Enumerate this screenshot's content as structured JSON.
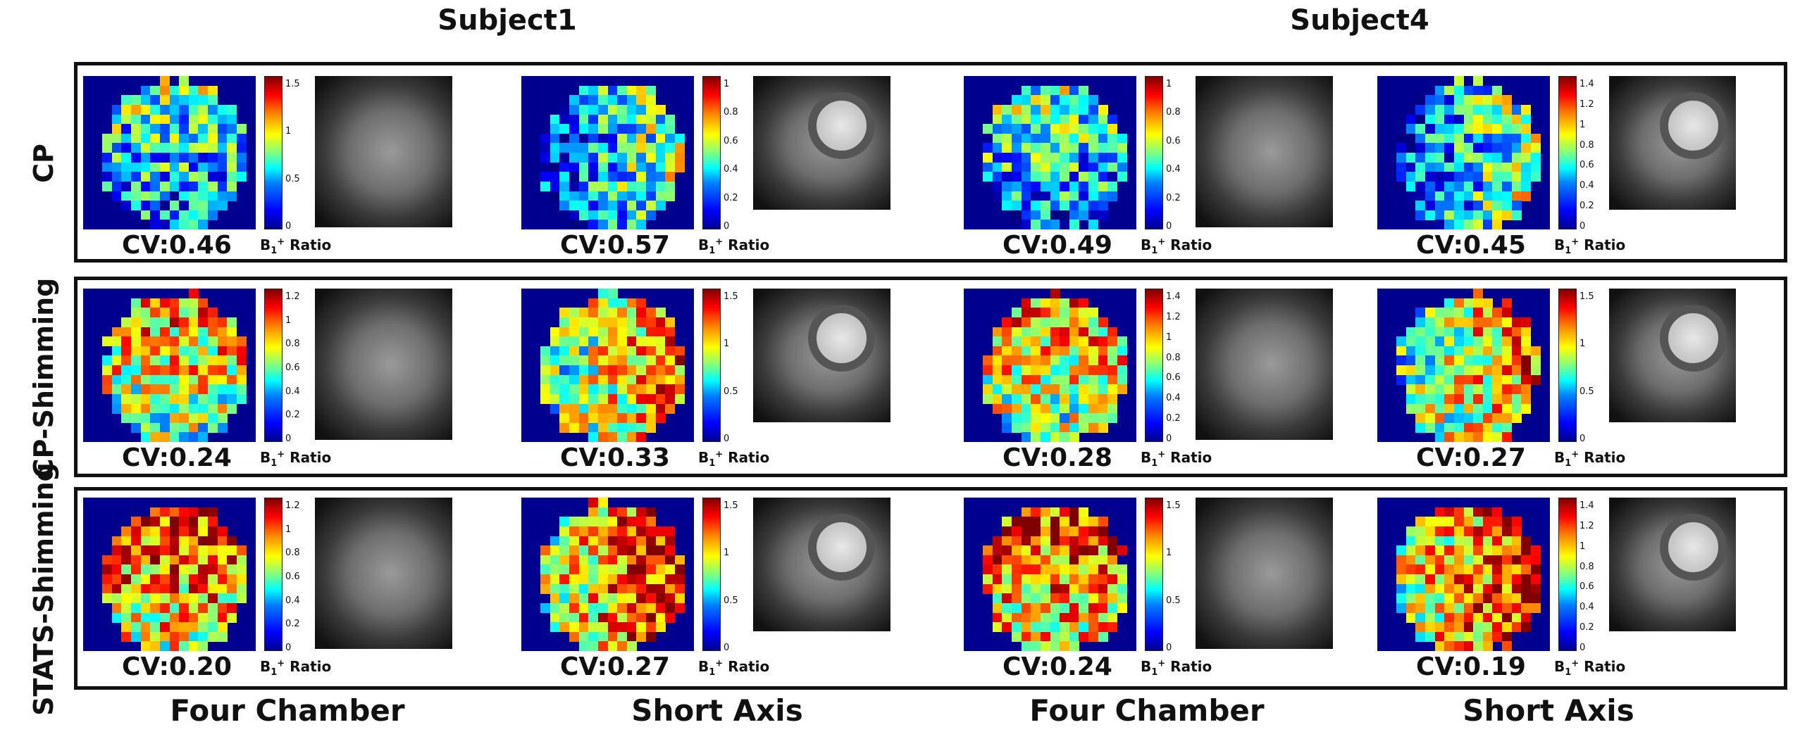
{
  "subjects": [
    "Subject1",
    "Subject4"
  ],
  "rows": [
    "CP",
    "CP-Shimming",
    "STATS-Shimming"
  ],
  "columns": [
    "Four Chamber",
    "Short Axis",
    "Four Chamber",
    "Short Axis"
  ],
  "ratio_label": {
    "b": "B",
    "sub": "1",
    "sup": "+",
    "text": " Ratio"
  },
  "panels": [
    [
      {
        "cv": "CV:0.46",
        "ticks": [
          "1.5",
          "1",
          "0.5",
          "0"
        ]
      },
      {
        "cv": "CV:0.57",
        "ticks": [
          "1",
          "0.8",
          "0.6",
          "0.4",
          "0.2",
          "0"
        ]
      },
      {
        "cv": "CV:0.49",
        "ticks": [
          "1",
          "0.8",
          "0.6",
          "0.4",
          "0.2",
          "0"
        ]
      },
      {
        "cv": "CV:0.45",
        "ticks": [
          "1.4",
          "1.2",
          "1",
          "0.8",
          "0.6",
          "0.4",
          "0.2",
          "0"
        ]
      }
    ],
    [
      {
        "cv": "CV:0.24",
        "ticks": [
          "1.2",
          "1",
          "0.8",
          "0.6",
          "0.4",
          "0.2",
          "0"
        ]
      },
      {
        "cv": "CV:0.33",
        "ticks": [
          "1.5",
          "1",
          "0.5",
          "0"
        ]
      },
      {
        "cv": "CV:0.28",
        "ticks": [
          "1.4",
          "1.2",
          "1",
          "0.8",
          "0.6",
          "0.4",
          "0.2",
          "0"
        ]
      },
      {
        "cv": "CV:0.27",
        "ticks": [
          "1.5",
          "1",
          "0.5",
          "0"
        ]
      }
    ],
    [
      {
        "cv": "CV:0.20",
        "ticks": [
          "1.2",
          "1",
          "0.8",
          "0.6",
          "0.4",
          "0.2",
          "0"
        ]
      },
      {
        "cv": "CV:0.27",
        "ticks": [
          "1.5",
          "1",
          "0.5",
          "0"
        ]
      },
      {
        "cv": "CV:0.24",
        "ticks": [
          "1.5",
          "1",
          "0.5",
          "0"
        ]
      },
      {
        "cv": "CV:0.19",
        "ticks": [
          "1.4",
          "1.2",
          "1",
          "0.8",
          "0.6",
          "0.4",
          "0.2",
          "0"
        ]
      }
    ]
  ],
  "colormap": "jet"
}
